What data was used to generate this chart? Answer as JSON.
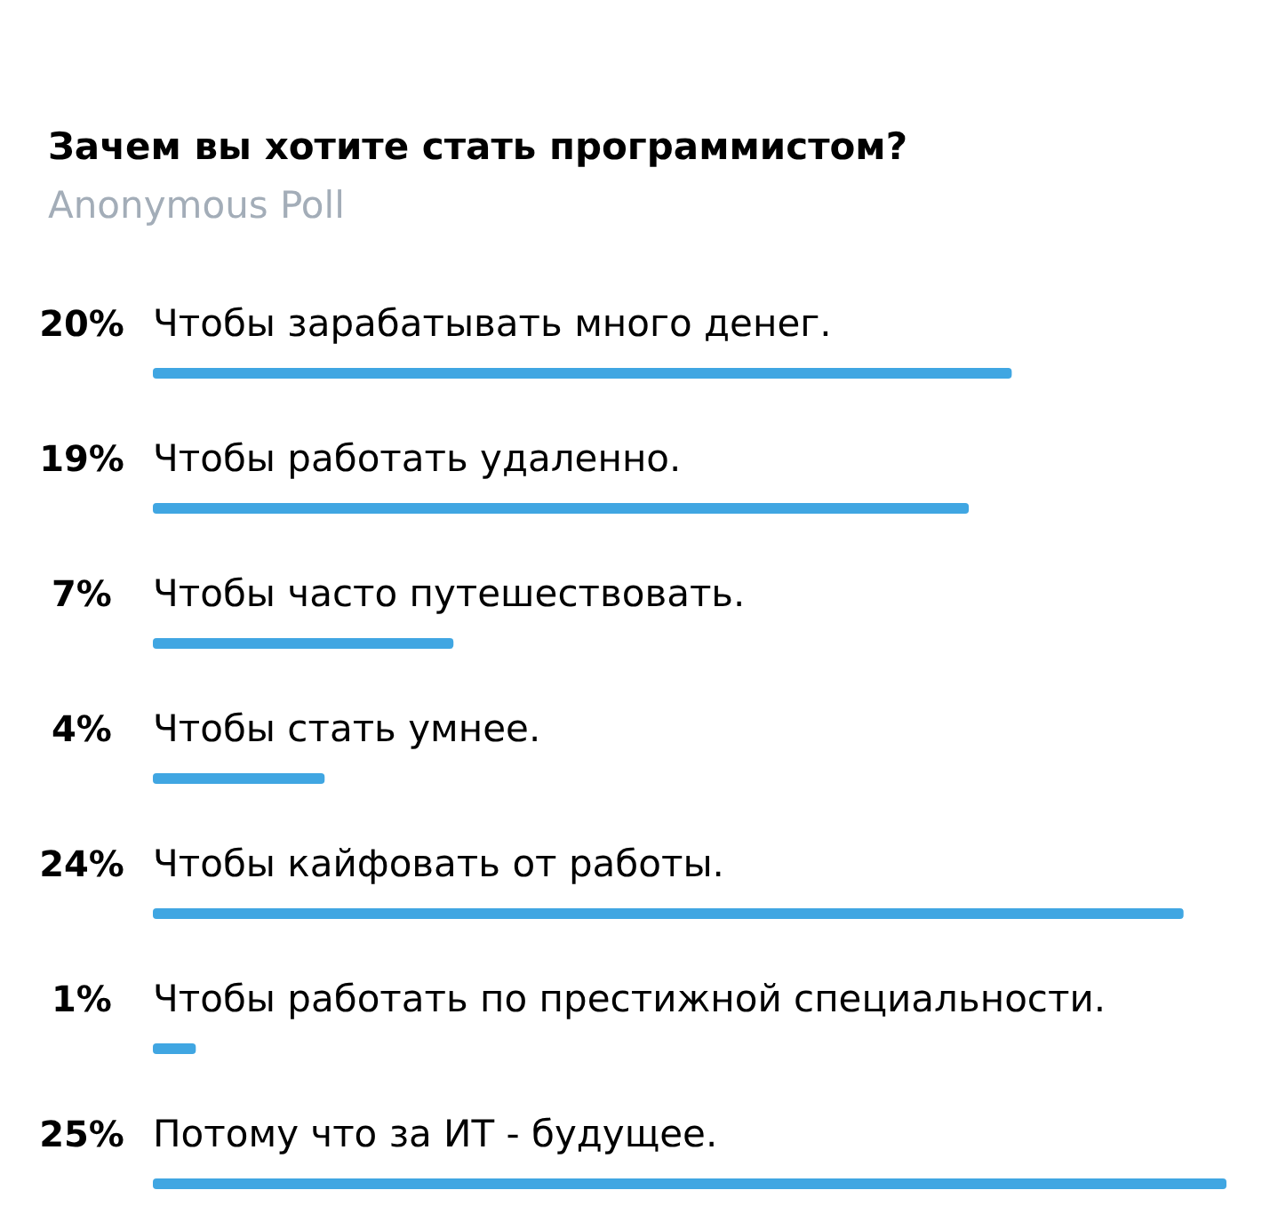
{
  "chart_data": {
    "type": "bar",
    "orientation": "horizontal",
    "title": "Зачем вы хотите стать программистом?",
    "subtitle": "Anonymous Poll",
    "categories": [
      "Чтобы зарабатывать много денег.",
      "Чтобы работать удаленно.",
      "Чтобы часто путешествовать.",
      "Чтобы стать умнее.",
      "Чтобы кайфовать от работы.",
      "Чтобы работать по престижной специальности.",
      "Потому что за ИТ - будущее."
    ],
    "values": [
      20,
      19,
      7,
      4,
      24,
      1,
      25
    ],
    "value_labels": [
      "20%",
      "19%",
      "7%",
      "4%",
      "24%",
      "1%",
      "25%"
    ],
    "color": "#40a6e2"
  }
}
